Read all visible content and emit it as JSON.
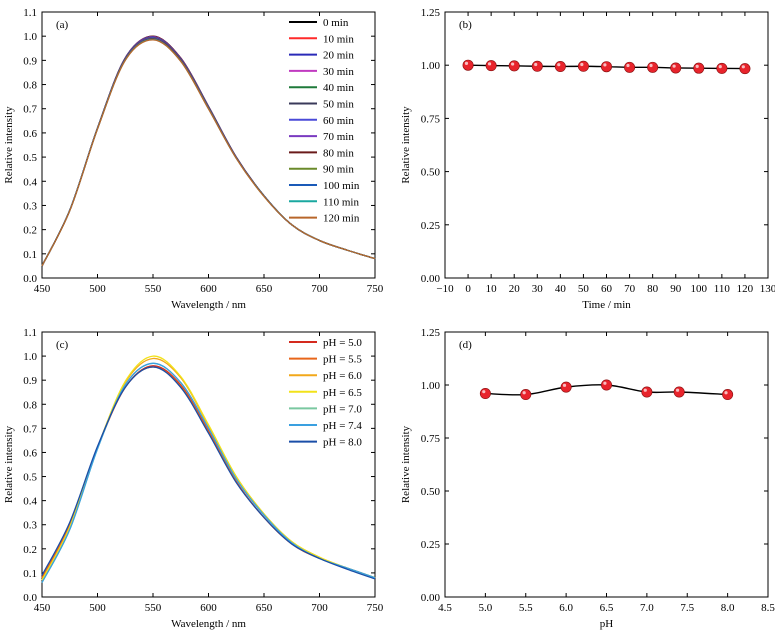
{
  "chart_data": [
    {
      "type": "line",
      "panel_label": "(a)",
      "xlabel": "Wavelength / nm",
      "ylabel": "Relative intensity",
      "xlim": [
        450,
        750
      ],
      "ylim": [
        0.0,
        1.1
      ],
      "xticks": [
        "450",
        "500",
        "550",
        "600",
        "650",
        "700",
        "750"
      ],
      "yticks": [
        "0.0",
        "0.1",
        "0.2",
        "0.3",
        "0.4",
        "0.5",
        "0.6",
        "0.7",
        "0.8",
        "0.9",
        "1.0",
        "1.1"
      ],
      "legend": "top-right",
      "x": [
        450,
        475,
        500,
        525,
        550,
        575,
        600,
        625,
        650,
        675,
        700,
        725,
        750
      ],
      "series": [
        {
          "name": "0 min",
          "color": "#000000",
          "values": [
            0.05,
            0.28,
            0.62,
            0.91,
            1.0,
            0.91,
            0.71,
            0.5,
            0.34,
            0.22,
            0.155,
            0.115,
            0.08
          ]
        },
        {
          "name": "10 min",
          "color": "#ff2a2a",
          "values": [
            0.05,
            0.28,
            0.62,
            0.91,
            0.999,
            0.909,
            0.709,
            0.5,
            0.34,
            0.22,
            0.155,
            0.115,
            0.08
          ]
        },
        {
          "name": "20 min",
          "color": "#2a2ab8",
          "values": [
            0.05,
            0.28,
            0.62,
            0.91,
            0.998,
            0.908,
            0.709,
            0.5,
            0.34,
            0.22,
            0.155,
            0.115,
            0.08
          ]
        },
        {
          "name": "30 min",
          "color": "#c03ac0",
          "values": [
            0.05,
            0.28,
            0.62,
            0.909,
            0.996,
            0.906,
            0.708,
            0.499,
            0.34,
            0.22,
            0.155,
            0.115,
            0.08
          ]
        },
        {
          "name": "40 min",
          "color": "#1f7a3a",
          "values": [
            0.05,
            0.28,
            0.62,
            0.908,
            0.995,
            0.905,
            0.707,
            0.499,
            0.34,
            0.22,
            0.155,
            0.115,
            0.08
          ]
        },
        {
          "name": "50 min",
          "color": "#3a3a5a",
          "values": [
            0.05,
            0.28,
            0.62,
            0.907,
            0.994,
            0.904,
            0.706,
            0.498,
            0.34,
            0.22,
            0.155,
            0.115,
            0.08
          ]
        },
        {
          "name": "60 min",
          "color": "#4a4ad8",
          "values": [
            0.05,
            0.28,
            0.619,
            0.906,
            0.993,
            0.903,
            0.705,
            0.498,
            0.339,
            0.22,
            0.155,
            0.115,
            0.08
          ]
        },
        {
          "name": "70 min",
          "color": "#7a3ac0",
          "values": [
            0.05,
            0.28,
            0.619,
            0.905,
            0.991,
            0.902,
            0.704,
            0.497,
            0.339,
            0.22,
            0.155,
            0.115,
            0.08
          ]
        },
        {
          "name": "80 min",
          "color": "#6a1a1a",
          "values": [
            0.05,
            0.279,
            0.618,
            0.904,
            0.99,
            0.901,
            0.703,
            0.497,
            0.339,
            0.22,
            0.155,
            0.115,
            0.08
          ]
        },
        {
          "name": "90 min",
          "color": "#6a8a2a",
          "values": [
            0.05,
            0.279,
            0.618,
            0.903,
            0.988,
            0.899,
            0.702,
            0.496,
            0.338,
            0.22,
            0.155,
            0.115,
            0.08
          ]
        },
        {
          "name": "100 min",
          "color": "#1a5ab8",
          "values": [
            0.05,
            0.279,
            0.617,
            0.902,
            0.987,
            0.898,
            0.701,
            0.496,
            0.338,
            0.22,
            0.155,
            0.115,
            0.08
          ]
        },
        {
          "name": "110 min",
          "color": "#1aa8a0",
          "values": [
            0.05,
            0.279,
            0.617,
            0.901,
            0.986,
            0.897,
            0.7,
            0.495,
            0.338,
            0.22,
            0.155,
            0.115,
            0.08
          ]
        },
        {
          "name": "120 min",
          "color": "#b8662a",
          "values": [
            0.05,
            0.278,
            0.616,
            0.9,
            0.985,
            0.896,
            0.699,
            0.495,
            0.337,
            0.22,
            0.155,
            0.115,
            0.08
          ]
        }
      ]
    },
    {
      "type": "line",
      "panel_label": "(b)",
      "xlabel": "Time / min",
      "ylabel": "Relative intensity",
      "xlim": [
        -10,
        130
      ],
      "ylim": [
        0.0,
        1.25
      ],
      "xticks": [
        "−10",
        "0",
        "10",
        "20",
        "30",
        "40",
        "50",
        "60",
        "70",
        "80",
        "90",
        "100",
        "110",
        "120",
        "130"
      ],
      "yticks": [
        "0.00",
        "0.25",
        "0.50",
        "0.75",
        "1.00",
        "1.25"
      ],
      "marker_color": "#e8242c",
      "x": [
        0,
        10,
        20,
        30,
        40,
        50,
        60,
        70,
        80,
        90,
        100,
        110,
        120
      ],
      "values": [
        1.0,
        0.998,
        0.997,
        0.995,
        0.994,
        0.995,
        0.993,
        0.99,
        0.99,
        0.987,
        0.986,
        0.985,
        0.984
      ]
    },
    {
      "type": "line",
      "panel_label": "(c)",
      "xlabel": "Wavelength / nm",
      "ylabel": "Relative intensity",
      "xlim": [
        450,
        750
      ],
      "ylim": [
        0.0,
        1.1
      ],
      "xticks": [
        "450",
        "500",
        "550",
        "600",
        "650",
        "700",
        "750"
      ],
      "yticks": [
        "0.0",
        "0.1",
        "0.2",
        "0.3",
        "0.4",
        "0.5",
        "0.6",
        "0.7",
        "0.8",
        "0.9",
        "1.0",
        "1.1"
      ],
      "legend": "top-right",
      "x": [
        450,
        475,
        500,
        525,
        550,
        575,
        600,
        625,
        650,
        675,
        700,
        725,
        750
      ],
      "series": [
        {
          "name": "pH = 5.0",
          "color": "#d42a1e",
          "values": [
            0.08,
            0.3,
            0.62,
            0.87,
            0.96,
            0.88,
            0.69,
            0.48,
            0.33,
            0.22,
            0.16,
            0.12,
            0.08
          ]
        },
        {
          "name": "pH = 5.5",
          "color": "#e8661a",
          "values": [
            0.08,
            0.3,
            0.62,
            0.87,
            0.955,
            0.875,
            0.685,
            0.478,
            0.33,
            0.22,
            0.16,
            0.12,
            0.08
          ]
        },
        {
          "name": "pH = 6.0",
          "color": "#f2a81a",
          "values": [
            0.07,
            0.29,
            0.62,
            0.89,
            0.99,
            0.91,
            0.71,
            0.5,
            0.345,
            0.23,
            0.165,
            0.12,
            0.08
          ]
        },
        {
          "name": "pH = 6.5",
          "color": "#f2e21a",
          "values": [
            0.07,
            0.29,
            0.62,
            0.895,
            1.0,
            0.915,
            0.715,
            0.5,
            0.345,
            0.23,
            0.165,
            0.12,
            0.08
          ]
        },
        {
          "name": "pH = 7.0",
          "color": "#7ac8a0",
          "values": [
            0.06,
            0.28,
            0.615,
            0.88,
            0.97,
            0.89,
            0.7,
            0.49,
            0.34,
            0.225,
            0.16,
            0.12,
            0.08
          ]
        },
        {
          "name": "pH = 7.4",
          "color": "#3aa0e0",
          "values": [
            0.06,
            0.28,
            0.615,
            0.88,
            0.97,
            0.89,
            0.7,
            0.49,
            0.34,
            0.225,
            0.16,
            0.12,
            0.08
          ]
        },
        {
          "name": "pH = 8.0",
          "color": "#1a4ea8",
          "values": [
            0.09,
            0.31,
            0.625,
            0.87,
            0.955,
            0.87,
            0.68,
            0.475,
            0.33,
            0.22,
            0.16,
            0.115,
            0.075
          ]
        }
      ]
    },
    {
      "type": "line",
      "panel_label": "(d)",
      "xlabel": "pH",
      "ylabel": "Relative intensity",
      "xlim": [
        4.5,
        8.5
      ],
      "ylim": [
        0.0,
        1.25
      ],
      "xticks": [
        "4.5",
        "5.0",
        "5.5",
        "6.0",
        "6.5",
        "7.0",
        "7.5",
        "8.0",
        "8.5"
      ],
      "yticks": [
        "0.00",
        "0.25",
        "0.50",
        "0.75",
        "1.00",
        "1.25"
      ],
      "marker_color": "#e8242c",
      "x": [
        5.0,
        5.5,
        6.0,
        6.5,
        7.0,
        7.4,
        8.0
      ],
      "values": [
        0.96,
        0.955,
        0.99,
        1.0,
        0.967,
        0.967,
        0.955
      ]
    }
  ]
}
